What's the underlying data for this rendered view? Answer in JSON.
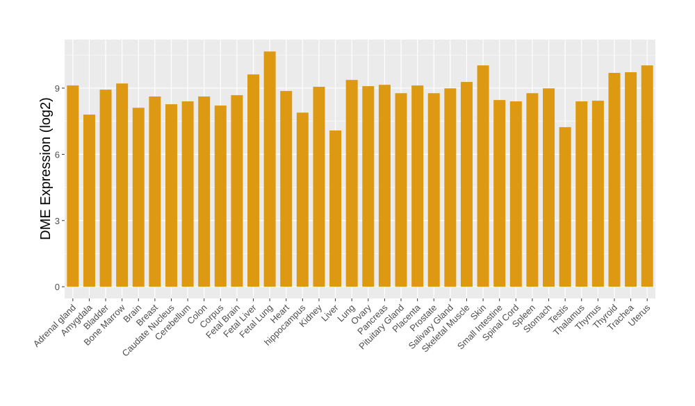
{
  "chart_data": {
    "type": "bar",
    "title": "",
    "xlabel": "",
    "ylabel": "DME Expression (log2)",
    "ylim": [
      -0.53,
      11.2
    ],
    "yticks": [
      0,
      3,
      6,
      9
    ],
    "grid": true,
    "bar_color": "#DE9912",
    "panel_color": "#EBEBEB",
    "categories": [
      "Adrenal gland",
      "Amygdala",
      "Bladder",
      "Bone Marrow",
      "Brain",
      "Breast",
      "Caudate Nucleus",
      "Cerebellum",
      "Colon",
      "Corpus",
      "Fetal Brain",
      "Fetal Liver",
      "Fetal Lung",
      "Heart",
      "hippocampus",
      "Kidney",
      "Liver",
      "Lung",
      "Ovary",
      "Pancreas",
      "Pituitary Gland",
      "Placenta",
      "Prostate",
      "Salivary Gland",
      "Skeletal Muscle",
      "Skin",
      "Small Intestine",
      "Spinal Cord",
      "Spleen",
      "Stomach",
      "Testis",
      "Thalamus",
      "Thymus",
      "Thyroid",
      "Trachea",
      "Uterus"
    ],
    "values": [
      9.12,
      7.8,
      8.93,
      9.21,
      8.11,
      8.62,
      8.27,
      8.4,
      8.62,
      8.21,
      8.68,
      9.62,
      10.66,
      8.87,
      7.89,
      9.06,
      7.08,
      9.37,
      9.09,
      9.15,
      8.77,
      9.12,
      8.77,
      8.99,
      9.28,
      10.03,
      8.46,
      8.4,
      8.77,
      8.99,
      7.23,
      8.4,
      8.43,
      9.69,
      9.72,
      10.03
    ]
  }
}
